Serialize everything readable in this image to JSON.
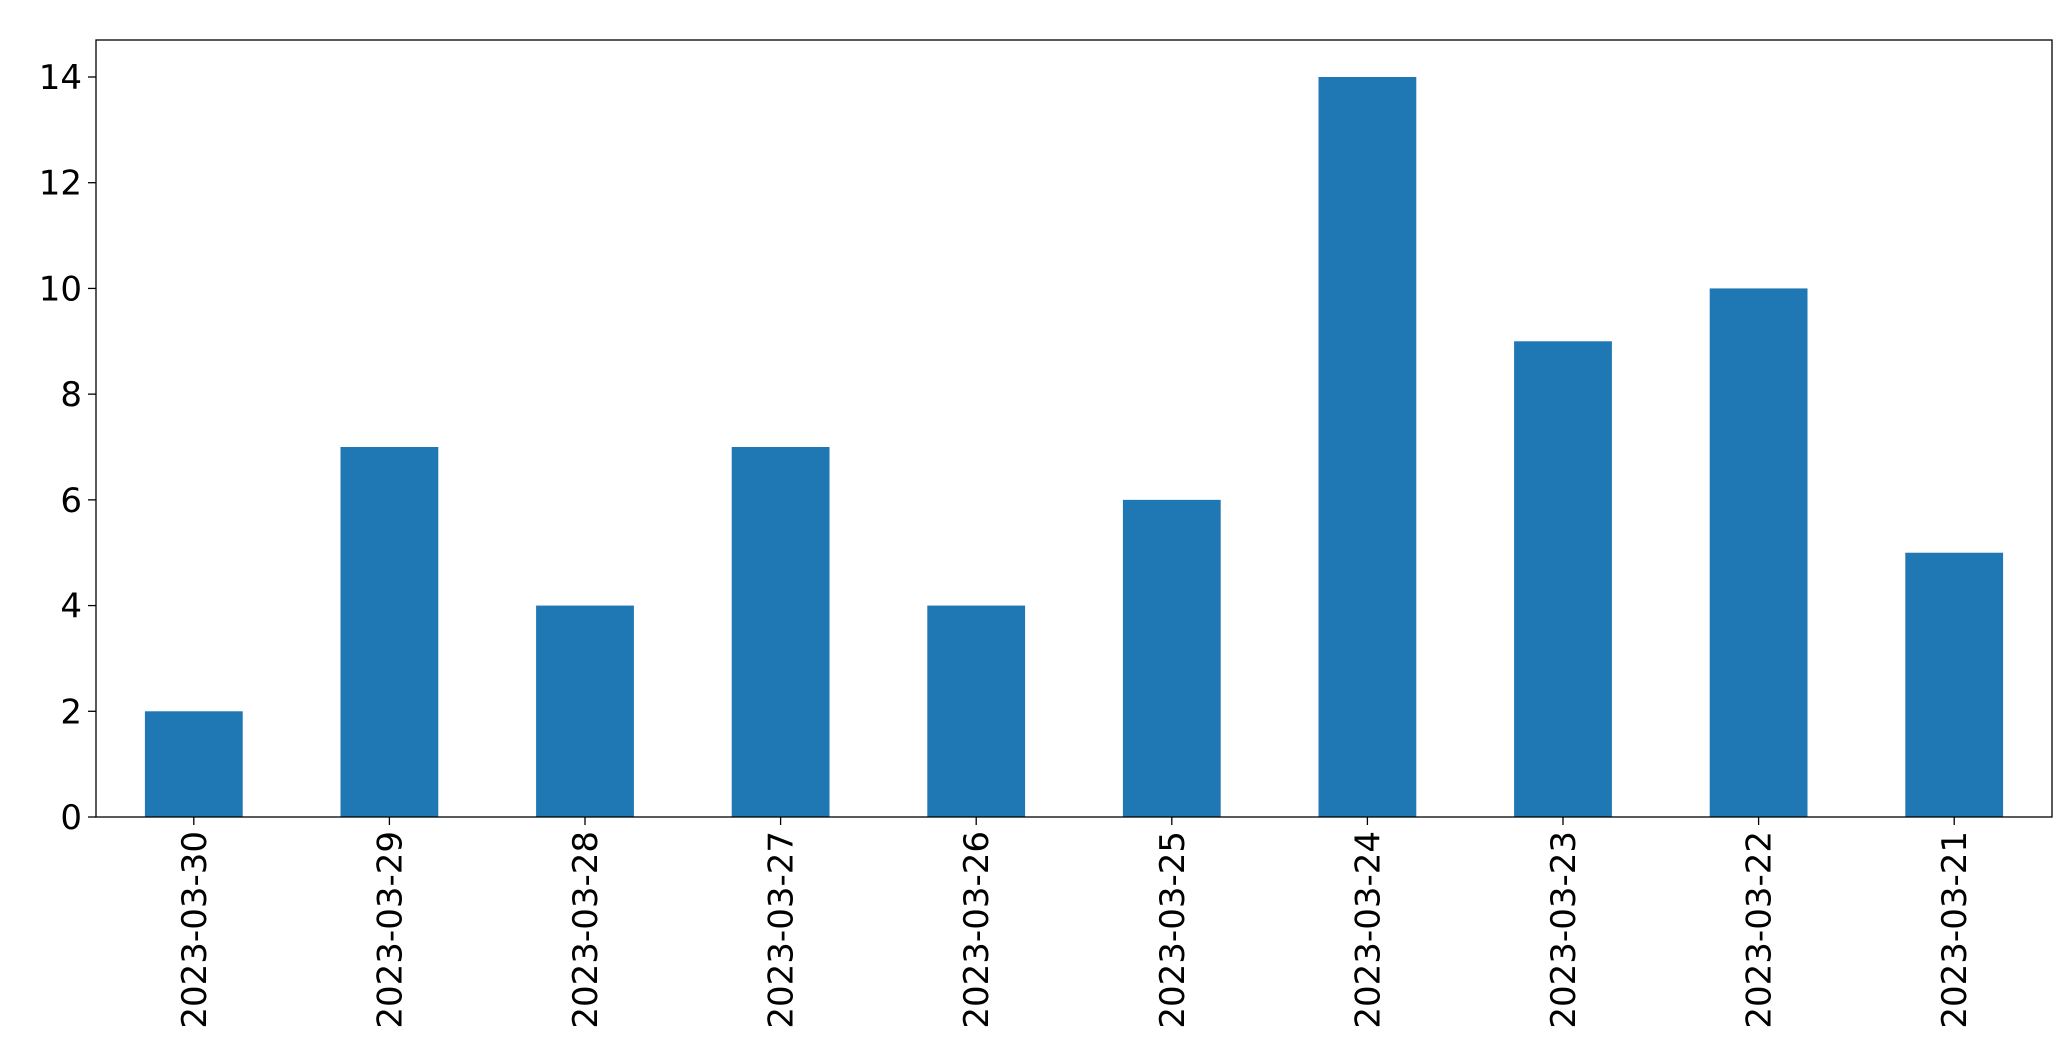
{
  "chart_data": {
    "type": "bar",
    "categories": [
      "2023-03-30",
      "2023-03-29",
      "2023-03-28",
      "2023-03-27",
      "2023-03-26",
      "2023-03-25",
      "2023-03-24",
      "2023-03-23",
      "2023-03-22",
      "2023-03-21"
    ],
    "values": [
      2,
      7,
      4,
      7,
      4,
      6,
      14,
      9,
      10,
      5
    ],
    "color": "#1f77b4",
    "ylim": [
      0,
      14.7
    ],
    "yticks": [
      0,
      2,
      4,
      6,
      8,
      10,
      12,
      14
    ],
    "grid": false
  }
}
